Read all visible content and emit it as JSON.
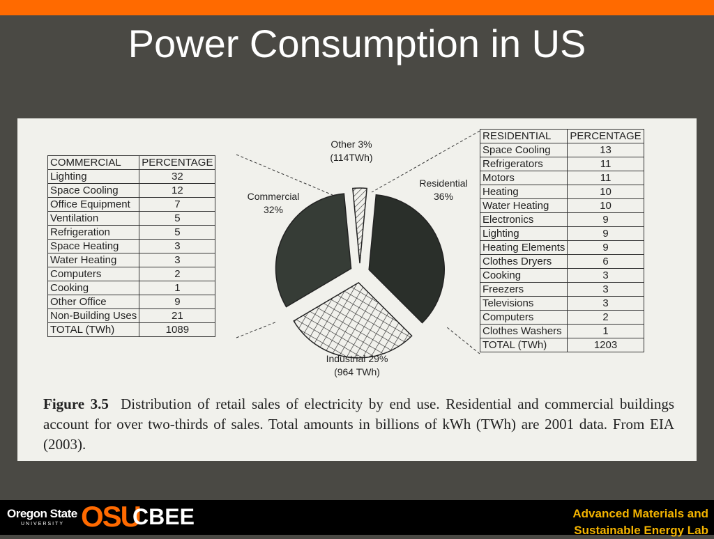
{
  "slide": {
    "title": "Power Consumption in US"
  },
  "chart_data": {
    "type": "pie",
    "categories": [
      "Other",
      "Residential",
      "Industrial",
      "Commercial"
    ],
    "values": [
      3,
      36,
      29,
      32
    ],
    "value_labels": [
      "3%",
      "36%",
      "29%",
      "32%"
    ],
    "colors": [
      "url(#diag)",
      "#2a2f2a",
      "url(#cross)",
      "#363c36"
    ],
    "annotations": [
      "(114TWh)",
      "(964 TWh)"
    ]
  },
  "commercial_table": {
    "header": [
      "COMMERCIAL",
      "PERCENTAGE"
    ],
    "rows": [
      [
        "Lighting",
        "32"
      ],
      [
        "Space Cooling",
        "12"
      ],
      [
        "Office Equipment",
        "7"
      ],
      [
        "Ventilation",
        "5"
      ],
      [
        "Refrigeration",
        "5"
      ],
      [
        "Space Heating",
        "3"
      ],
      [
        "Water Heating",
        "3"
      ],
      [
        "Computers",
        "2"
      ],
      [
        "Cooking",
        "1"
      ],
      [
        "Other Office",
        "9"
      ],
      [
        "Non-Building Uses",
        "21"
      ]
    ],
    "total": [
      "TOTAL (TWh)",
      "1089"
    ]
  },
  "residential_table": {
    "header": [
      "RESIDENTIAL",
      "PERCENTAGE"
    ],
    "rows": [
      [
        "Space Cooling",
        "13"
      ],
      [
        "Refrigerators",
        "11"
      ],
      [
        "Motors",
        "11"
      ],
      [
        "Heating",
        "10"
      ],
      [
        "Water Heating",
        "10"
      ],
      [
        "Electronics",
        "9"
      ],
      [
        "Lighting",
        "9"
      ],
      [
        "Heating Elements",
        "9"
      ],
      [
        "Clothes Dryers",
        "6"
      ],
      [
        "Cooking",
        "3"
      ],
      [
        "Freezers",
        "3"
      ],
      [
        "Televisions",
        "3"
      ],
      [
        "Computers",
        "2"
      ],
      [
        "Clothes Washers",
        "1"
      ]
    ],
    "total": [
      "TOTAL (TWh)",
      "1203"
    ]
  },
  "caption": {
    "label": "Figure 3.5",
    "text": "Distribution of retail sales of electricity by end use. Residential and commercial buildings account for over two-thirds of sales. Total amounts in billions of kWh (TWh) are 2001 data. From EIA (2003)."
  },
  "footer": {
    "university": "Oregon State",
    "university_sub": "UNIVERSITY",
    "osu": "OSU",
    "dept": "CBEE",
    "lab_line1": "Advanced Materials and",
    "lab_line2": "Sustainable Energy Lab"
  }
}
